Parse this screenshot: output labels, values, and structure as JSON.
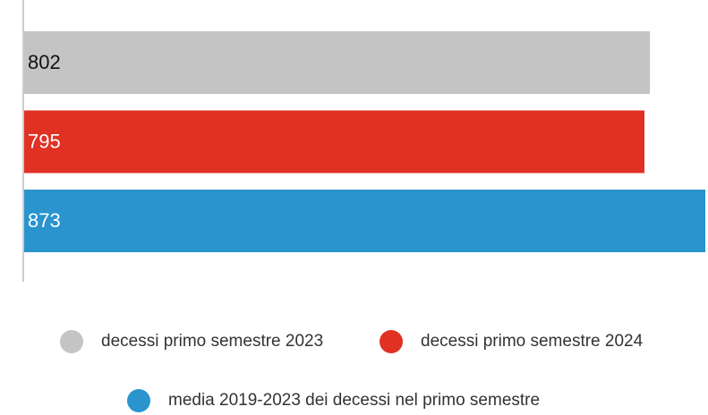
{
  "chart_data": {
    "type": "bar",
    "orientation": "horizontal",
    "categories": [
      "decessi primo semestre 2023",
      "decessi primo semestre 2024",
      "media 2019-2023 dei decessi nel primo semestre"
    ],
    "values": [
      802,
      795,
      873
    ],
    "colors": [
      "#c4c4c4",
      "#e03124",
      "#2a94cf"
    ],
    "label_colors": [
      "#111111",
      "#ffffff",
      "#ffffff"
    ],
    "legend": "bottom"
  }
}
